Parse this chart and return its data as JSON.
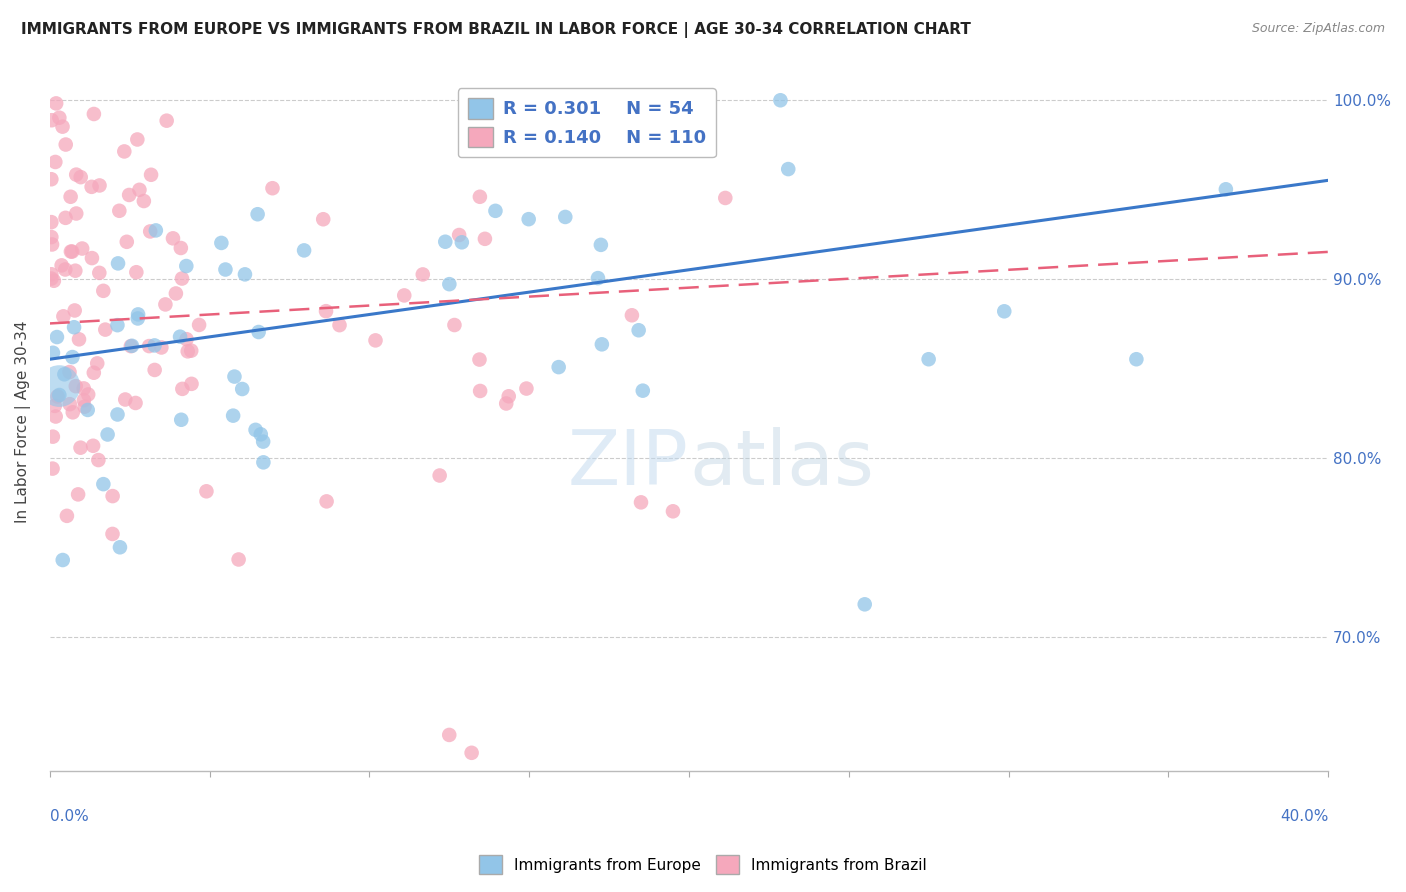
{
  "title": "IMMIGRANTS FROM EUROPE VS IMMIGRANTS FROM BRAZIL IN LABOR FORCE | AGE 30-34 CORRELATION CHART",
  "source": "Source: ZipAtlas.com",
  "ylabel": "In Labor Force | Age 30-34",
  "xmin": 0.0,
  "xmax": 0.4,
  "ymin": 0.625,
  "ymax": 1.015,
  "europe_R": 0.301,
  "europe_N": 54,
  "brazil_R": 0.14,
  "brazil_N": 110,
  "europe_color": "#92c5e8",
  "brazil_color": "#f5a8bc",
  "europe_line_color": "#3a78c9",
  "brazil_line_color": "#e8607a",
  "legend_text_color": "#4472c4",
  "background_color": "#ffffff",
  "grid_color": "#cccccc",
  "europe_line_y0": 0.855,
  "europe_line_y1": 0.955,
  "brazil_line_y0": 0.875,
  "brazil_line_y1": 0.915
}
